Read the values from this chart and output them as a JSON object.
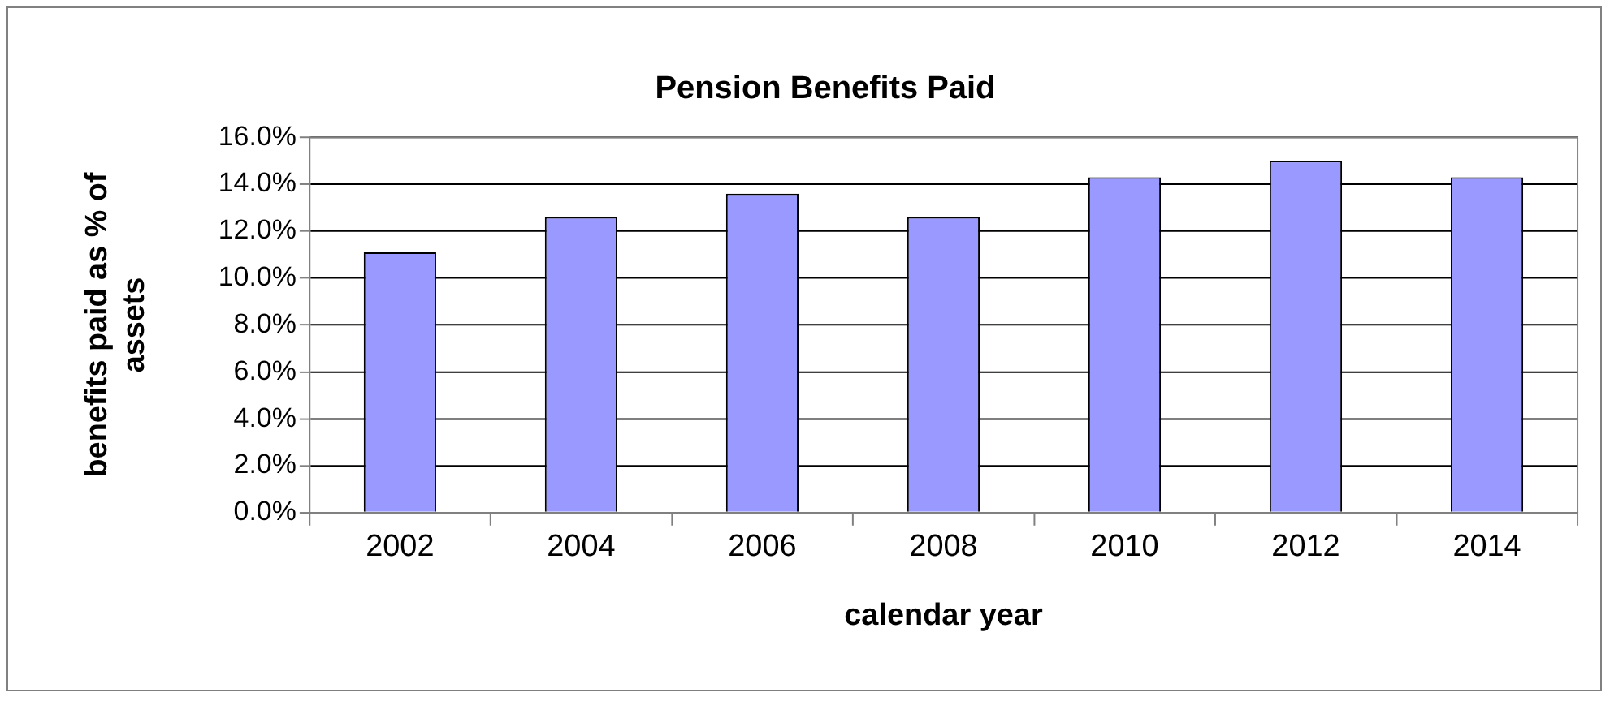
{
  "chart_data": {
    "type": "bar",
    "title": "Pension Benefits Paid",
    "xlabel": "calendar year",
    "ylabel": "benefits paid as % of assets",
    "categories": [
      "2002",
      "2004",
      "2006",
      "2008",
      "2010",
      "2012",
      "2014"
    ],
    "values": [
      11.1,
      12.6,
      13.6,
      12.6,
      14.3,
      15.0,
      14.3
    ],
    "color": "#9999ff",
    "ylim": [
      0,
      16
    ],
    "yticks": [
      {
        "value": 0,
        "label": "0.0%"
      },
      {
        "value": 2,
        "label": "2.0%"
      },
      {
        "value": 4,
        "label": "4.0%"
      },
      {
        "value": 6,
        "label": "6.0%"
      },
      {
        "value": 8,
        "label": "8.0%"
      },
      {
        "value": 10,
        "label": "10.0%"
      },
      {
        "value": 12,
        "label": "12.0%"
      },
      {
        "value": 14,
        "label": "14.0%"
      },
      {
        "value": 16,
        "label": "16.0%"
      }
    ],
    "grid": "y",
    "legend": false
  }
}
